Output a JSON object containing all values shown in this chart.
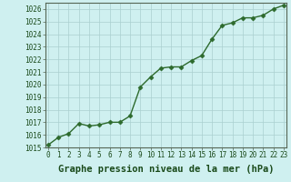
{
  "x": [
    0,
    1,
    2,
    3,
    4,
    5,
    6,
    7,
    8,
    9,
    10,
    11,
    12,
    13,
    14,
    15,
    16,
    17,
    18,
    19,
    20,
    21,
    22,
    23
  ],
  "y": [
    1015.2,
    1015.8,
    1016.1,
    1016.9,
    1016.7,
    1016.8,
    1017.0,
    1017.0,
    1017.5,
    1019.8,
    1020.6,
    1021.3,
    1021.4,
    1021.4,
    1021.9,
    1022.3,
    1023.6,
    1024.7,
    1024.9,
    1025.3,
    1025.3,
    1025.5,
    1026.0,
    1026.3
  ],
  "ylim": [
    1015,
    1026.5
  ],
  "yticks": [
    1015,
    1016,
    1017,
    1018,
    1019,
    1020,
    1021,
    1022,
    1023,
    1024,
    1025,
    1026
  ],
  "xticks": [
    0,
    1,
    2,
    3,
    4,
    5,
    6,
    7,
    8,
    9,
    10,
    11,
    12,
    13,
    14,
    15,
    16,
    17,
    18,
    19,
    20,
    21,
    22,
    23
  ],
  "line_color": "#2d6a2d",
  "marker": "D",
  "marker_size": 2.5,
  "bg_color": "#cff0f0",
  "grid_color": "#aacfcf",
  "xlabel": "Graphe pression niveau de la mer (hPa)",
  "xlabel_fontsize": 7.5,
  "tick_fontsize": 5.5,
  "line_width": 1.0,
  "xlim": [
    -0.3,
    23.3
  ]
}
